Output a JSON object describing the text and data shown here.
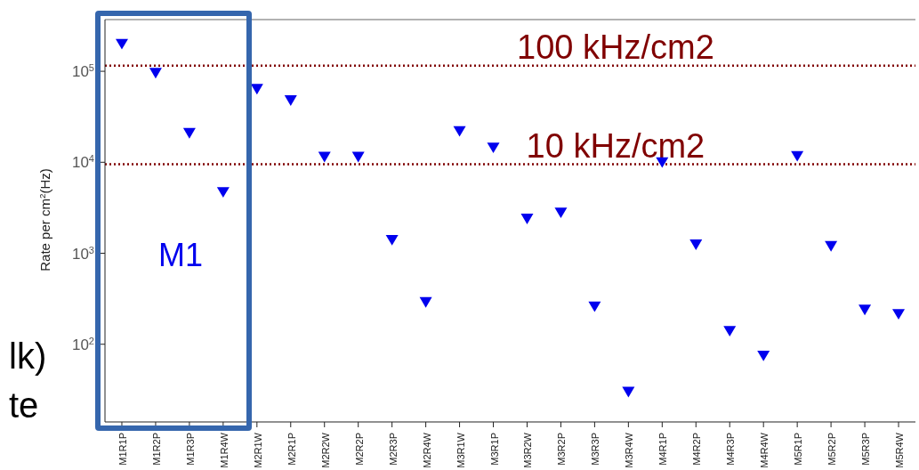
{
  "chart_data": {
    "type": "scatter",
    "ylabel": "Rate per cm$^{2}$(Hz)",
    "categories": [
      "M1R1P",
      "M1R2P",
      "M1R3P",
      "M1R4W",
      "M2R1W",
      "M2R1P",
      "M2R2W",
      "M2R2P",
      "M2R3P",
      "M2R4W",
      "M3R1W",
      "M3R1P",
      "M3R2W",
      "M3R2P",
      "M3R3P",
      "M3R4W",
      "M4R1P",
      "M4R2P",
      "M4R3P",
      "M4R4W",
      "M5R1P",
      "M5R2P",
      "M5R3P",
      "M5R4W"
    ],
    "series": [
      {
        "color": "#0000ee",
        "values": [
          200000,
          96000,
          21000,
          4700,
          64000,
          48000,
          11500,
          11500,
          1400,
          290,
          22000,
          14500,
          2400,
          2800,
          260,
          30,
          10000,
          1250,
          140,
          75,
          11700,
          1200,
          240,
          215
        ]
      }
    ],
    "log": true,
    "ylim": [
      14,
      370000
    ],
    "yticks": [
      {
        "value": 100,
        "label": "10$^{2}$"
      },
      {
        "value": 1000,
        "label": "10$^{3}$"
      },
      {
        "value": 10000,
        "label": "10$^{4}$"
      },
      {
        "value": 100000,
        "label": "10$^{5}$"
      }
    ],
    "marker": "triangle",
    "ref_lines": [
      {
        "axis": "y",
        "value": 115000,
        "label": "100 kHz/cm2",
        "color": "#800000",
        "line_style": "dotted"
      },
      {
        "axis": "y",
        "value": 9500,
        "label": "10 kHz/cm2",
        "color": "#800000",
        "line_style": "dotted"
      }
    ],
    "annotations": [
      "M1",
      "lk)",
      "te"
    ]
  }
}
